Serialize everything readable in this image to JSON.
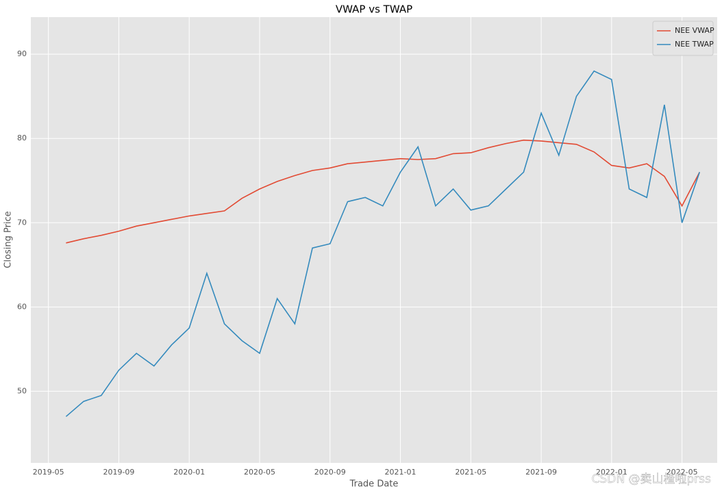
{
  "chart_data": {
    "type": "line",
    "title": "VWAP vs TWAP",
    "x_label": "Trade Date",
    "y_label": "Closing Price",
    "x": [
      "2019-06",
      "2019-07",
      "2019-08",
      "2019-09",
      "2019-10",
      "2019-11",
      "2019-12",
      "2020-01",
      "2020-02",
      "2020-03",
      "2020-04",
      "2020-05",
      "2020-06",
      "2020-07",
      "2020-08",
      "2020-09",
      "2020-10",
      "2020-11",
      "2020-12",
      "2021-01",
      "2021-02",
      "2021-03",
      "2021-04",
      "2021-05",
      "2021-06",
      "2021-07",
      "2021-08",
      "2021-09",
      "2021-10",
      "2021-11",
      "2021-12",
      "2022-01",
      "2022-02",
      "2022-03",
      "2022-04",
      "2022-05",
      "2022-06"
    ],
    "series": [
      {
        "name": "NEE VWAP",
        "color": "#e24a33",
        "values": [
          67.6,
          68.1,
          68.5,
          69.0,
          69.6,
          70.0,
          70.4,
          70.8,
          71.1,
          71.4,
          72.9,
          74.0,
          74.9,
          75.6,
          76.2,
          76.5,
          77.0,
          77.2,
          77.4,
          77.6,
          77.5,
          77.6,
          78.2,
          78.3,
          78.9,
          79.4,
          79.8,
          79.7,
          79.5,
          79.3,
          78.4,
          76.8,
          76.5,
          77.0,
          75.5,
          72.0,
          76.0
        ]
      },
      {
        "name": "NEE TWAP",
        "color": "#348abd",
        "values": [
          47.0,
          48.8,
          49.5,
          52.5,
          54.5,
          53.0,
          55.5,
          57.5,
          64.0,
          58.0,
          56.0,
          54.5,
          61.0,
          58.0,
          67.0,
          67.5,
          72.5,
          73.0,
          72.0,
          76.0,
          79.0,
          72.0,
          74.0,
          71.5,
          72.0,
          74.0,
          76.0,
          83.0,
          78.0,
          85.0,
          88.0,
          87.0,
          74.0,
          73.0,
          84.0,
          70.0,
          76.0
        ]
      }
    ],
    "xlim": [
      "2019-04",
      "2022-07"
    ],
    "xticks": [
      "2019-05",
      "2019-09",
      "2020-01",
      "2020-05",
      "2020-09",
      "2021-01",
      "2021-05",
      "2021-09",
      "2022-01",
      "2022-05"
    ],
    "ylim": [
      41.5,
      94.4
    ],
    "yticks": [
      50,
      60,
      70,
      80,
      90
    ],
    "grid": true,
    "legend": "upper right",
    "watermark": "CSDN @卖山楂啦prss"
  }
}
